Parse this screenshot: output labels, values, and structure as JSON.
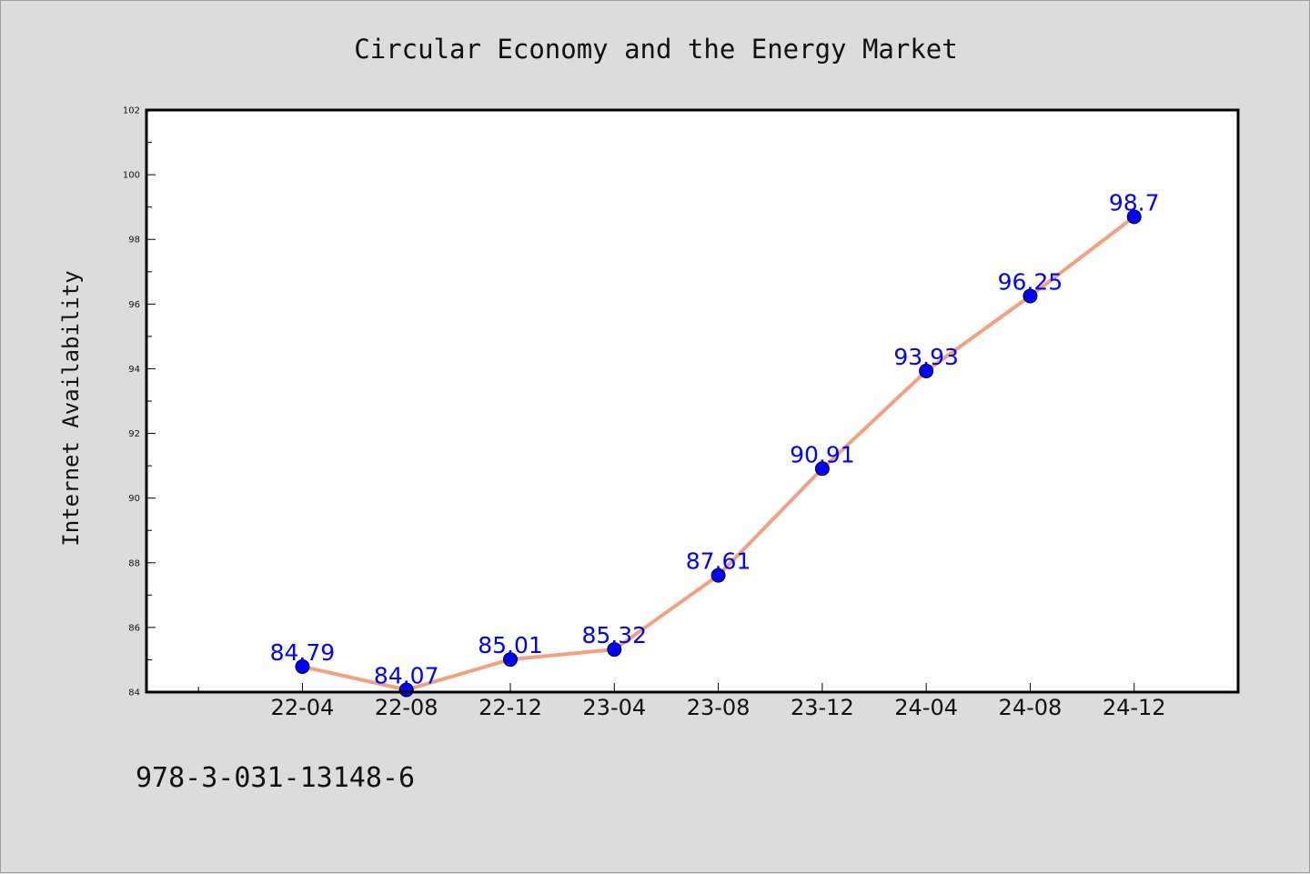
{
  "chart_data": {
    "type": "line",
    "title": "Circular Economy and the Energy Market",
    "xlabel": "",
    "ylabel": "Internet Availability",
    "categories": [
      "22-04",
      "22-08",
      "22-12",
      "23-04",
      "23-08",
      "23-12",
      "24-04",
      "24-08",
      "24-12"
    ],
    "series": [
      {
        "values": [
          84.79,
          84.07,
          85.01,
          85.32,
          87.61,
          90.91,
          93.93,
          96.25,
          98.7
        ],
        "data_labels": [
          "84.79",
          "84.07",
          "85.01",
          "85.32",
          "87.61",
          "90.91",
          "93.93",
          "96.25",
          "98.7"
        ]
      }
    ],
    "ylim": [
      84,
      102
    ],
    "yticks": [
      "84",
      "86",
      "88",
      "90",
      "92",
      "94",
      "96",
      "98",
      "100",
      "102"
    ],
    "grid": false,
    "legend": "none",
    "colors": {
      "line": "#f4a07e",
      "marker": "#0000ff",
      "label": "#0000ff",
      "plot_bg": "#ffffff",
      "page_bg": "#dcdcdc"
    }
  },
  "footer": {
    "text": "978-3-031-13148-6"
  }
}
